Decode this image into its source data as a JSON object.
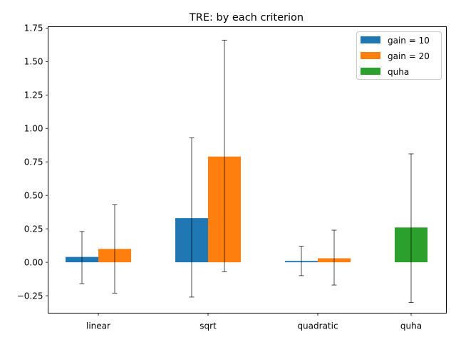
{
  "chart_data": {
    "type": "bar",
    "title": "TRE: by each criterion",
    "xlabel": "",
    "ylabel": "",
    "categories": [
      "linear",
      "sqrt",
      "quadratic",
      "quha"
    ],
    "ylim": [
      -0.38,
      1.76
    ],
    "yticks": [
      -0.25,
      0.0,
      0.25,
      0.5,
      0.75,
      1.0,
      1.25,
      1.5,
      1.75
    ],
    "ytick_labels": [
      "−0.25",
      "0.00",
      "0.25",
      "0.50",
      "0.75",
      "1.00",
      "1.25",
      "1.50",
      "1.75"
    ],
    "legend_position": "top-right",
    "grid": false,
    "series": [
      {
        "name": "gain = 10",
        "color": "#1f77b4",
        "values": [
          0.04,
          0.33,
          0.01,
          null
        ],
        "error_low": [
          -0.16,
          -0.26,
          -0.1,
          null
        ],
        "error_high": [
          0.23,
          0.93,
          0.12,
          null
        ]
      },
      {
        "name": "gain = 20",
        "color": "#ff7f0e",
        "values": [
          0.1,
          0.79,
          0.03,
          null
        ],
        "error_low": [
          -0.23,
          -0.07,
          -0.17,
          null
        ],
        "error_high": [
          0.43,
          1.66,
          0.24,
          null
        ]
      },
      {
        "name": "quha",
        "color": "#2ca02c",
        "values": [
          null,
          null,
          null,
          0.26
        ],
        "error_low": [
          null,
          null,
          null,
          -0.3
        ],
        "error_high": [
          null,
          null,
          null,
          0.81
        ]
      }
    ]
  }
}
